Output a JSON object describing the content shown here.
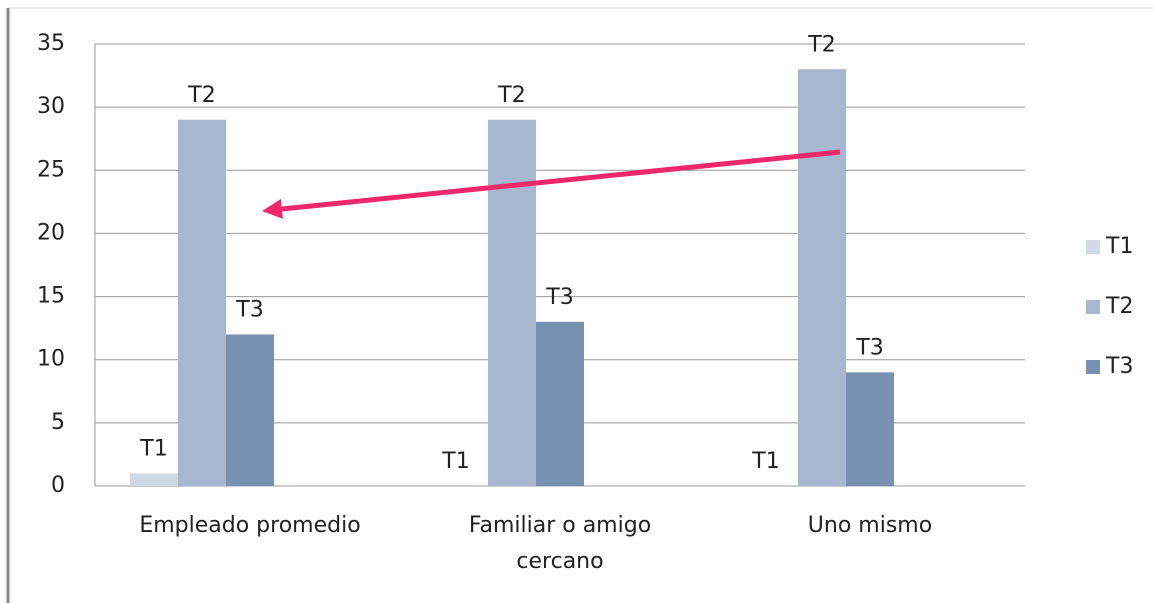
{
  "chart_data": {
    "type": "bar",
    "categories": [
      "Empleado promedio",
      "Familiar o amigo cercano",
      "Uno mismo"
    ],
    "series": [
      {
        "name": "T1",
        "color": "#d0d9e4",
        "values": [
          1,
          0,
          0
        ],
        "value_labels": [
          "T1",
          "T1",
          "T1"
        ]
      },
      {
        "name": "T2",
        "color": "#a7b7cf",
        "values": [
          29,
          29,
          33
        ],
        "value_labels": [
          "T2",
          "T2",
          "T2"
        ]
      },
      {
        "name": "T3",
        "color": "#7891b2",
        "values": [
          12,
          13,
          9
        ],
        "value_labels": [
          "T3",
          "T3",
          "T3"
        ]
      }
    ],
    "ylim": [
      0,
      35
    ],
    "yticks": [
      0,
      5,
      10,
      15,
      20,
      25,
      30,
      35
    ],
    "grid": true,
    "legend": "right"
  }
}
